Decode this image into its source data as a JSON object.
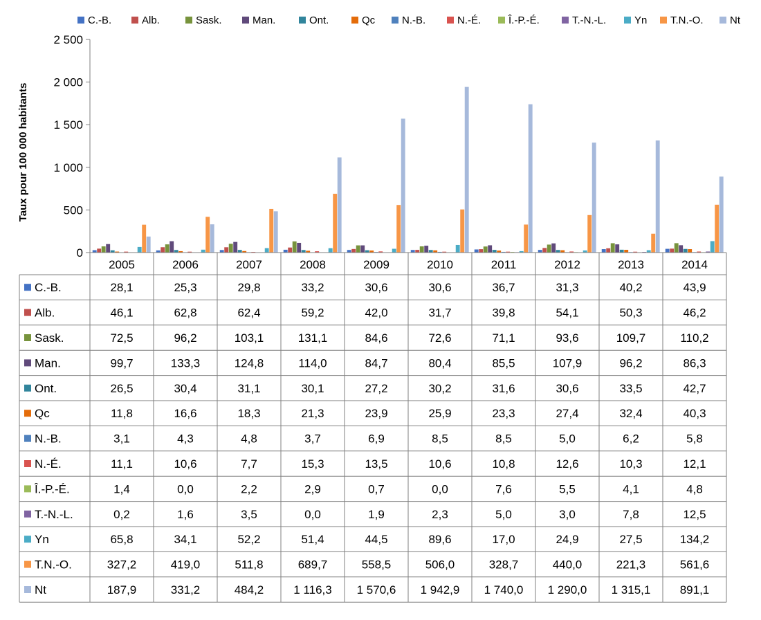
{
  "chart_data": {
    "type": "bar",
    "ylabel": "Taux pour 100 000 habitants",
    "ylim": [
      0,
      2500
    ],
    "yticks": [
      0,
      500,
      1000,
      1500,
      2000,
      2500
    ],
    "ytick_labels": [
      "0",
      "500",
      "1 000",
      "1 500",
      "2 000",
      "2 500"
    ],
    "legend_position": "top",
    "grid": false,
    "data_table": true,
    "categories": [
      "2005",
      "2006",
      "2007",
      "2008",
      "2009",
      "2010",
      "2011",
      "2012",
      "2013",
      "2014"
    ],
    "series": [
      {
        "name": "C.-B.",
        "color": "#4472C4",
        "values": [
          28.1,
          25.3,
          29.8,
          33.2,
          30.6,
          30.6,
          36.7,
          31.3,
          40.2,
          43.9
        ],
        "labels": [
          "28,1",
          "25,3",
          "29,8",
          "33,2",
          "30,6",
          "30,6",
          "36,7",
          "31,3",
          "40,2",
          "43,9"
        ]
      },
      {
        "name": "Alb.",
        "color": "#C0504D",
        "values": [
          46.1,
          62.8,
          62.4,
          59.2,
          42.0,
          31.7,
          39.8,
          54.1,
          50.3,
          46.2
        ],
        "labels": [
          "46,1",
          "62,8",
          "62,4",
          "59,2",
          "42,0",
          "31,7",
          "39,8",
          "54,1",
          "50,3",
          "46,2"
        ]
      },
      {
        "name": "Sask.",
        "color": "#77933C",
        "values": [
          72.5,
          96.2,
          103.1,
          131.1,
          84.6,
          72.6,
          71.1,
          93.6,
          109.7,
          110.2
        ],
        "labels": [
          "72,5",
          "96,2",
          "103,1",
          "131,1",
          "84,6",
          "72,6",
          "71,1",
          "93,6",
          "109,7",
          "110,2"
        ]
      },
      {
        "name": "Man.",
        "color": "#604A7B",
        "values": [
          99.7,
          133.3,
          124.8,
          114.0,
          84.7,
          80.4,
          85.5,
          107.9,
          96.2,
          86.3
        ],
        "labels": [
          "99,7",
          "133,3",
          "124,8",
          "114,0",
          "84,7",
          "80,4",
          "85,5",
          "107,9",
          "96,2",
          "86,3"
        ]
      },
      {
        "name": "Ont.",
        "color": "#31859C",
        "values": [
          26.5,
          30.4,
          31.1,
          30.1,
          27.2,
          30.2,
          31.6,
          30.6,
          33.5,
          42.7
        ],
        "labels": [
          "26,5",
          "30,4",
          "31,1",
          "30,1",
          "27,2",
          "30,2",
          "31,6",
          "30,6",
          "33,5",
          "42,7"
        ]
      },
      {
        "name": "Qc",
        "color": "#E46C0A",
        "values": [
          11.8,
          16.6,
          18.3,
          21.3,
          23.9,
          25.9,
          23.3,
          27.4,
          32.4,
          40.3
        ],
        "labels": [
          "11,8",
          "16,6",
          "18,3",
          "21,3",
          "23,9",
          "25,9",
          "23,3",
          "27,4",
          "32,4",
          "40,3"
        ]
      },
      {
        "name": "N.-B.",
        "color": "#4F81BD",
        "values": [
          3.1,
          4.3,
          4.8,
          3.7,
          6.9,
          8.5,
          8.5,
          5.0,
          6.2,
          5.8
        ],
        "labels": [
          "3,1",
          "4,3",
          "4,8",
          "3,7",
          "6,9",
          "8,5",
          "8,5",
          "5,0",
          "6,2",
          "5,8"
        ]
      },
      {
        "name": "N.-É.",
        "color": "#D9534F",
        "values": [
          11.1,
          10.6,
          7.7,
          15.3,
          13.5,
          10.6,
          10.8,
          12.6,
          10.3,
          12.1
        ],
        "labels": [
          "11,1",
          "10,6",
          "7,7",
          "15,3",
          "13,5",
          "10,6",
          "10,8",
          "12,6",
          "10,3",
          "12,1"
        ]
      },
      {
        "name": "Î.-P.-É.",
        "color": "#9BBB59",
        "values": [
          1.4,
          0.0,
          2.2,
          2.9,
          0.7,
          0.0,
          7.6,
          5.5,
          4.1,
          4.8
        ],
        "labels": [
          "1,4",
          "0,0",
          "2,2",
          "2,9",
          "0,7",
          "0,0",
          "7,6",
          "5,5",
          "4,1",
          "4,8"
        ]
      },
      {
        "name": "T.-N.-L.",
        "color": "#8064A2",
        "values": [
          0.2,
          1.6,
          3.5,
          0.0,
          1.9,
          2.3,
          5.0,
          3.0,
          7.8,
          12.5
        ],
        "labels": [
          "0,2",
          "1,6",
          "3,5",
          "0,0",
          "1,9",
          "2,3",
          "5,0",
          "3,0",
          "7,8",
          "12,5"
        ]
      },
      {
        "name": "Yn",
        "color": "#4BACC6",
        "values": [
          65.8,
          34.1,
          52.2,
          51.4,
          44.5,
          89.6,
          17.0,
          24.9,
          27.5,
          134.2
        ],
        "labels": [
          "65,8",
          "34,1",
          "52,2",
          "51,4",
          "44,5",
          "89,6",
          "17,0",
          "24,9",
          "27,5",
          "134,2"
        ]
      },
      {
        "name": "T.N.-O.",
        "color": "#F79646",
        "values": [
          327.2,
          419.0,
          511.8,
          689.7,
          558.5,
          506.0,
          328.7,
          440.0,
          221.3,
          561.6
        ],
        "labels": [
          "327,2",
          "419,0",
          "511,8",
          "689,7",
          "558,5",
          "506,0",
          "328,7",
          "440,0",
          "221,3",
          "561,6"
        ]
      },
      {
        "name": "Nt",
        "color": "#A6B9DB",
        "values": [
          187.9,
          331.2,
          484.2,
          1116.3,
          1570.6,
          1942.9,
          1740.0,
          1290.0,
          1315.1,
          891.1
        ],
        "labels": [
          "187,9",
          "331,2",
          "484,2",
          "1 116,3",
          "1 570,6",
          "1 942,9",
          "1 740,0",
          "1 290,0",
          "1 315,1",
          "891,1"
        ]
      }
    ]
  }
}
